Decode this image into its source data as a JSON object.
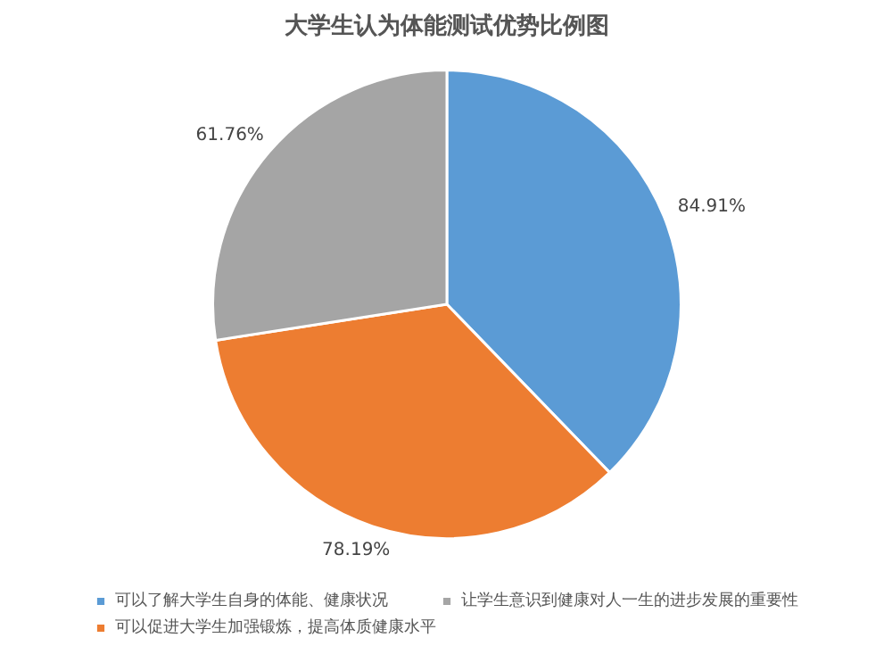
{
  "chart_data": {
    "type": "pie",
    "title": "大学生认为体能测试优势比例图",
    "categories": [
      "可以了解大学生自身的体能、健康状况",
      "可以促进大学生加强锻炼，提高体质健康水平",
      "让学生意识到健康对人一生的进步发展的重要性"
    ],
    "values": [
      84.91,
      78.19,
      61.76
    ],
    "value_labels": [
      "84.91%",
      "78.19%",
      "61.76%"
    ],
    "colors": [
      "#5b9bd5",
      "#ed7d31",
      "#a5a5a5"
    ],
    "legend": "bottom"
  }
}
